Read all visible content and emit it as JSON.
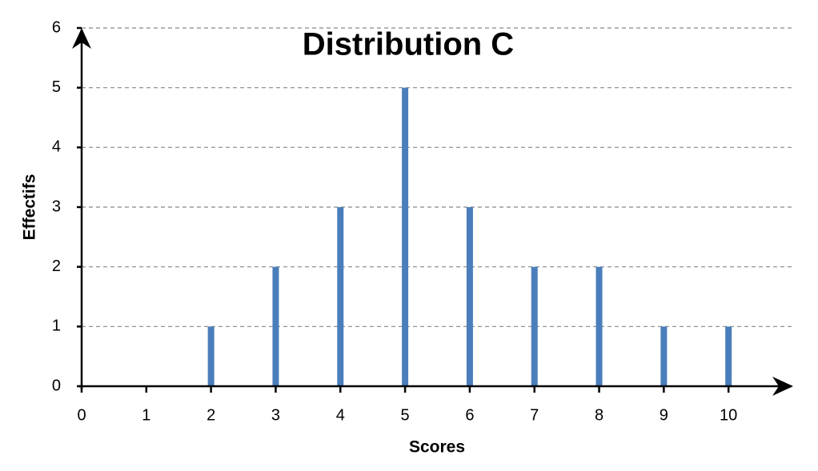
{
  "chart_data": {
    "type": "bar",
    "title": "Distribution C",
    "x": [
      2,
      3,
      4,
      5,
      6,
      7,
      8,
      9,
      10
    ],
    "values": [
      1,
      2,
      3,
      5,
      3,
      2,
      2,
      1,
      1
    ],
    "color": "#4a7ebb",
    "x_label": "Scores",
    "y_label": "Effectifs",
    "xlim": [
      0,
      11
    ],
    "xticks": [
      0,
      1,
      2,
      3,
      4,
      5,
      6,
      7,
      8,
      9,
      10
    ],
    "ylim": [
      0,
      6
    ],
    "yticks": [
      0,
      1,
      2,
      3,
      4,
      5,
      6
    ],
    "grid": true
  }
}
